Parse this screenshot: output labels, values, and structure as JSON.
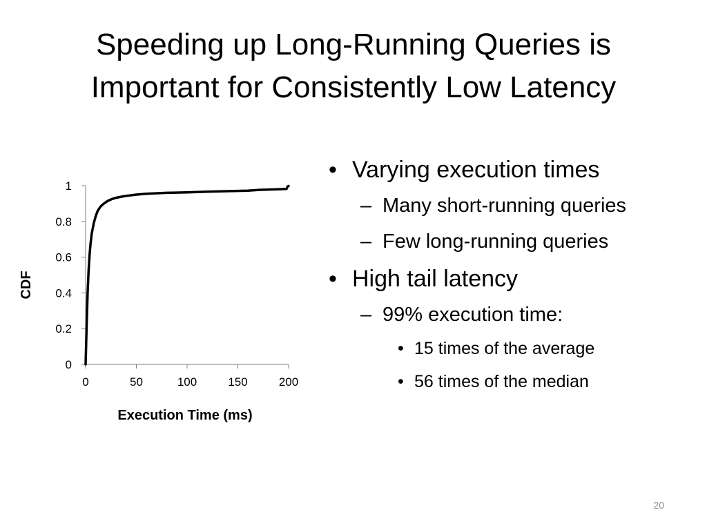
{
  "slide": {
    "title_line1": "Speeding up Long-Running Queries is",
    "title_line2": "Important for Consistently Low Latency",
    "page_number": "20"
  },
  "bullets": {
    "b1": "Varying execution times",
    "b1_sub1": "Many short-running queries",
    "b1_sub2": "Few long-running queries",
    "b2": "High tail latency",
    "b2_sub1": "99% execution time:",
    "b2_sub1_item1": "15 times of the average",
    "b2_sub1_item2": "56 times of the median",
    "dash": "–"
  },
  "chart_data": {
    "type": "line",
    "xlabel": "Execution Time (ms)",
    "ylabel": "CDF",
    "xlim": [
      0,
      200
    ],
    "ylim": [
      0,
      1
    ],
    "xticks": [
      0,
      50,
      100,
      150,
      200
    ],
    "yticks": [
      0,
      0.2,
      0.4,
      0.6,
      0.8,
      1
    ],
    "ytick_labels": [
      "0",
      "0.2",
      "0.4",
      "0.6",
      "0.8",
      "1"
    ],
    "grid": false,
    "series": [
      {
        "name": "CDF",
        "x": [
          0,
          1,
          2,
          3,
          4,
          5,
          6,
          8,
          10,
          12,
          15,
          18,
          22,
          26,
          30,
          35,
          40,
          50,
          60,
          80,
          100,
          120,
          140,
          160,
          170,
          180,
          190,
          198,
          199,
          200
        ],
        "y": [
          0,
          0.22,
          0.4,
          0.53,
          0.62,
          0.68,
          0.73,
          0.79,
          0.83,
          0.86,
          0.885,
          0.9,
          0.915,
          0.925,
          0.932,
          0.938,
          0.943,
          0.95,
          0.955,
          0.96,
          0.962,
          0.966,
          0.969,
          0.972,
          0.976,
          0.978,
          0.98,
          0.982,
          0.995,
          0.998
        ]
      }
    ]
  }
}
